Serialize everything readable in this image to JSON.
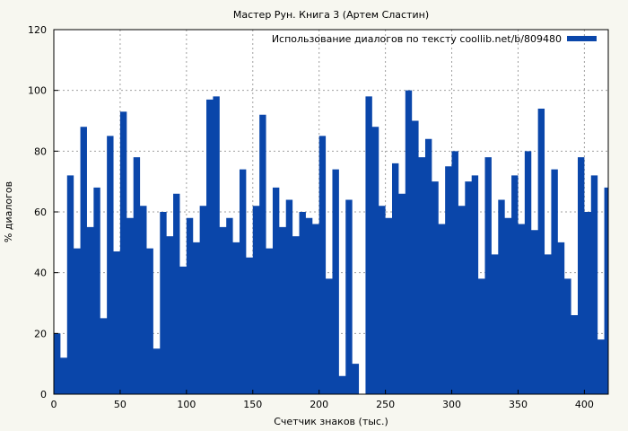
{
  "chart_data": {
    "type": "area",
    "title": "Мастер Рун. Книга 3 (Артем Сластин)",
    "xlabel": "Счетчик знаков (тыс.)",
    "ylabel": "% диалогов",
    "xlim": [
      0,
      418
    ],
    "ylim": [
      0,
      120
    ],
    "xticks": [
      0,
      50,
      100,
      150,
      200,
      250,
      300,
      350,
      400
    ],
    "yticks": [
      0,
      20,
      40,
      60,
      80,
      100,
      120
    ],
    "grid": true,
    "legend_position": "top-right",
    "series": [
      {
        "name": "Использование диалогов по тексту coollib.net/b/809480",
        "color": "#0a46aa",
        "x": [
          0,
          5,
          10,
          15,
          20,
          25,
          30,
          35,
          40,
          45,
          50,
          55,
          60,
          65,
          70,
          75,
          80,
          85,
          90,
          95,
          100,
          105,
          110,
          115,
          120,
          125,
          130,
          135,
          140,
          145,
          150,
          155,
          160,
          165,
          170,
          175,
          180,
          185,
          190,
          195,
          200,
          205,
          210,
          215,
          220,
          225,
          230,
          235,
          240,
          245,
          250,
          255,
          260,
          265,
          270,
          275,
          280,
          285,
          290,
          295,
          300,
          305,
          310,
          315,
          320,
          325,
          330,
          335,
          340,
          345,
          350,
          355,
          360,
          365,
          370,
          375,
          380,
          385,
          390,
          395,
          400,
          405,
          410,
          415
        ],
        "y": [
          20,
          12,
          72,
          48,
          88,
          55,
          68,
          25,
          85,
          47,
          93,
          58,
          78,
          62,
          48,
          15,
          60,
          52,
          66,
          42,
          58,
          50,
          62,
          97,
          98,
          55,
          58,
          50,
          74,
          45,
          62,
          92,
          48,
          68,
          55,
          64,
          52,
          60,
          58,
          56,
          85,
          38,
          74,
          6,
          64,
          10,
          0,
          98,
          88,
          62,
          58,
          76,
          66,
          100,
          90,
          78,
          84,
          70,
          56,
          75,
          80,
          62,
          70,
          72,
          38,
          78,
          46,
          64,
          58,
          72,
          56,
          80,
          54,
          94,
          46,
          74,
          50,
          38,
          26,
          78,
          60,
          72,
          18,
          68
        ]
      }
    ]
  }
}
